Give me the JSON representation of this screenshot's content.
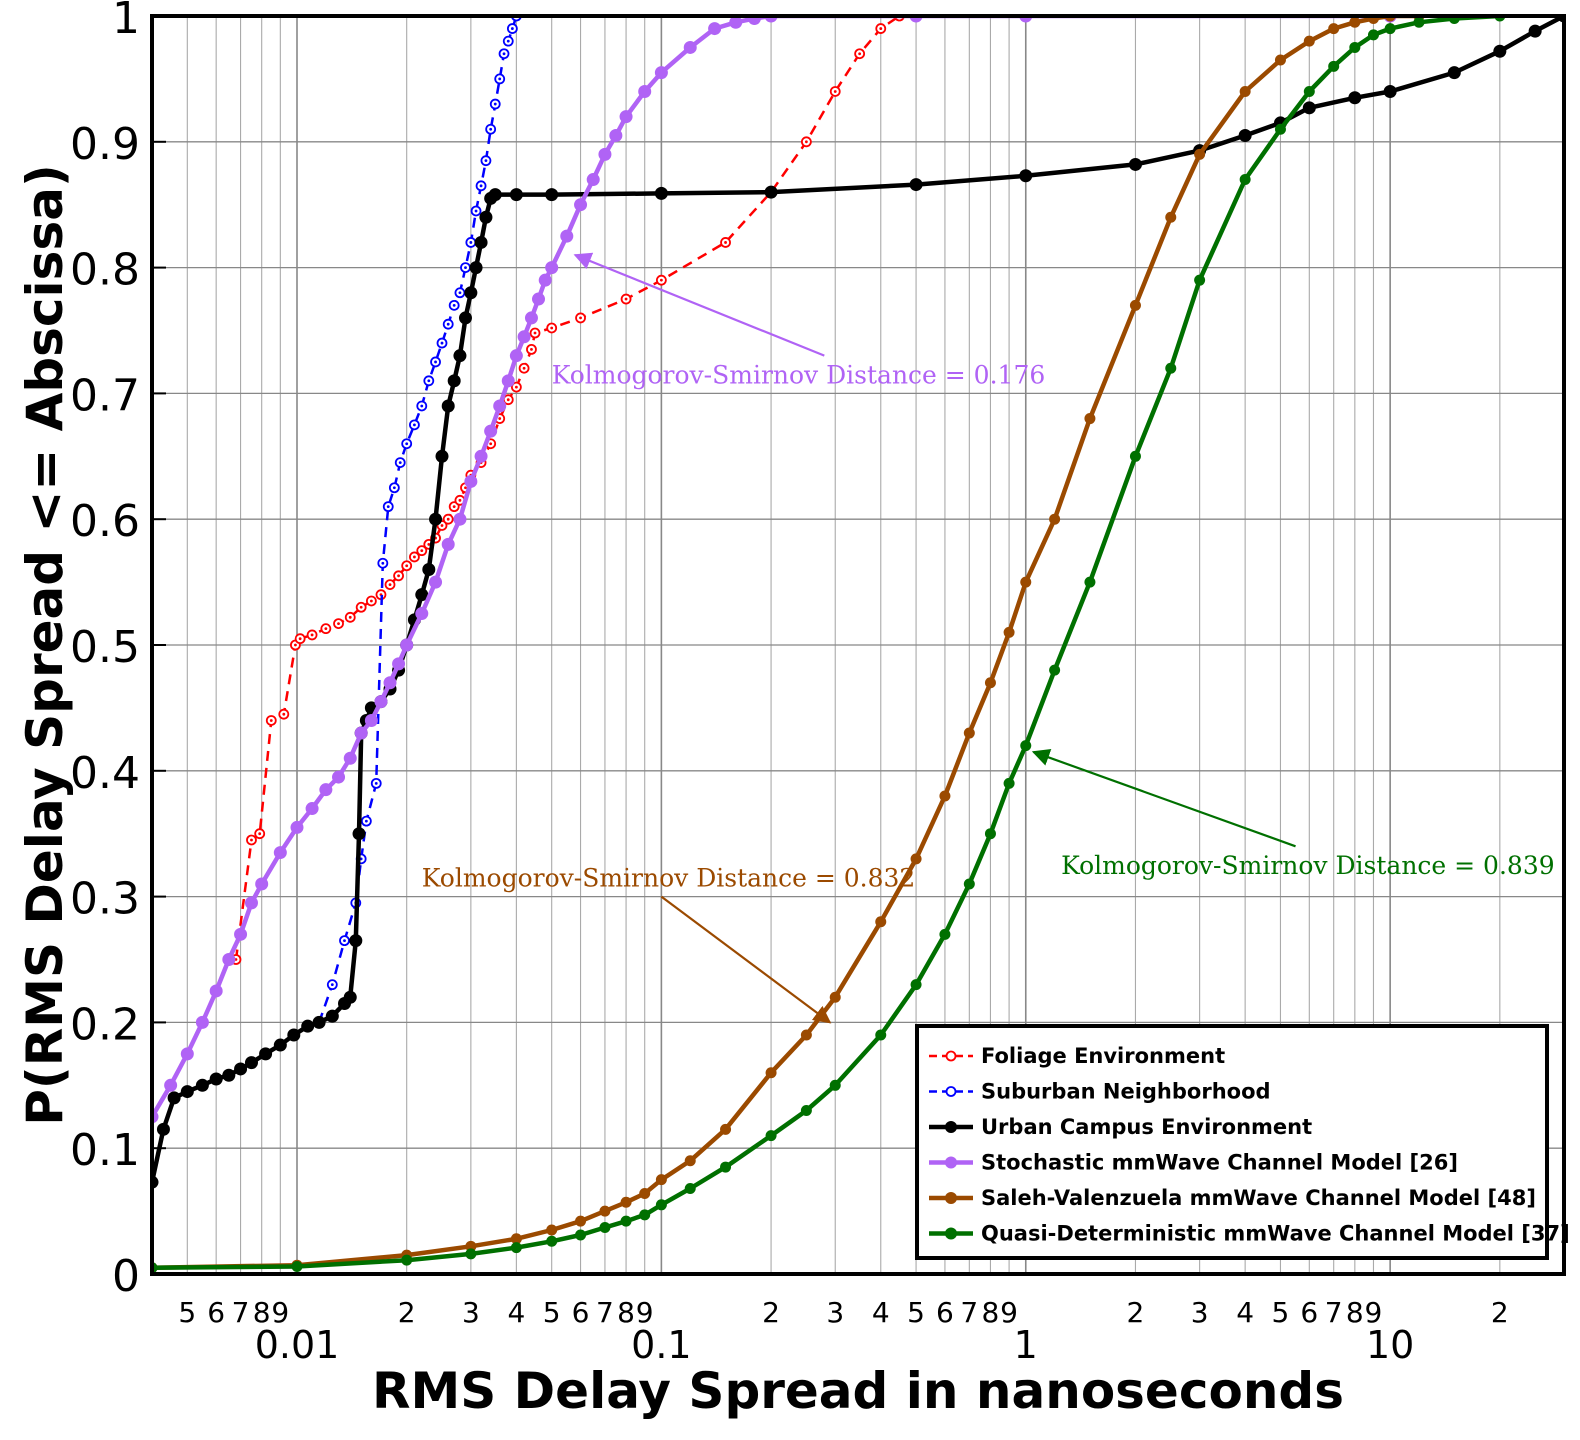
{
  "chart_data": {
    "type": "line",
    "xlabel": "RMS Delay Spread in nanoseconds",
    "ylabel": "P(RMS Delay Spread <= Abscissa)",
    "xscale": "log",
    "xlim": [
      0.004,
      30
    ],
    "ylim": [
      0,
      1
    ],
    "grid": true,
    "legend_position": "bottom-right",
    "x_major_ticks": [
      {
        "value": 0.01,
        "label": "0.01"
      },
      {
        "value": 0.1,
        "label": "0.1"
      },
      {
        "value": 1,
        "label": "1"
      },
      {
        "value": 10,
        "label": "10"
      }
    ],
    "x_minor_labels": [
      {
        "value": 0.005,
        "label": "5"
      },
      {
        "value": 0.006,
        "label": "6"
      },
      {
        "value": 0.007,
        "label": "7"
      },
      {
        "value": 0.008,
        "label": "8"
      },
      {
        "value": 0.009,
        "label": "9"
      },
      {
        "value": 0.02,
        "label": "2"
      },
      {
        "value": 0.03,
        "label": "3"
      },
      {
        "value": 0.04,
        "label": "4"
      },
      {
        "value": 0.05,
        "label": "5"
      },
      {
        "value": 0.06,
        "label": "6"
      },
      {
        "value": 0.07,
        "label": "7"
      },
      {
        "value": 0.08,
        "label": "8"
      },
      {
        "value": 0.09,
        "label": "9"
      },
      {
        "value": 0.2,
        "label": "2"
      },
      {
        "value": 0.3,
        "label": "3"
      },
      {
        "value": 0.4,
        "label": "4"
      },
      {
        "value": 0.5,
        "label": "5"
      },
      {
        "value": 0.6,
        "label": "6"
      },
      {
        "value": 0.7,
        "label": "7"
      },
      {
        "value": 0.8,
        "label": "8"
      },
      {
        "value": 0.9,
        "label": "9"
      },
      {
        "value": 2,
        "label": "2"
      },
      {
        "value": 3,
        "label": "3"
      },
      {
        "value": 4,
        "label": "4"
      },
      {
        "value": 5,
        "label": "5"
      },
      {
        "value": 6,
        "label": "6"
      },
      {
        "value": 7,
        "label": "7"
      },
      {
        "value": 8,
        "label": "8"
      },
      {
        "value": 9,
        "label": "9"
      },
      {
        "value": 20,
        "label": "2"
      }
    ],
    "y_ticks": [
      {
        "value": 0,
        "label": "0"
      },
      {
        "value": 0.1,
        "label": "0.1"
      },
      {
        "value": 0.2,
        "label": "0.2"
      },
      {
        "value": 0.3,
        "label": "0.3"
      },
      {
        "value": 0.4,
        "label": "0.4"
      },
      {
        "value": 0.5,
        "label": "0.5"
      },
      {
        "value": 0.6,
        "label": "0.6"
      },
      {
        "value": 0.7,
        "label": "0.7"
      },
      {
        "value": 0.8,
        "label": "0.8"
      },
      {
        "value": 0.9,
        "label": "0.9"
      },
      {
        "value": 1,
        "label": "1"
      }
    ],
    "series": [
      {
        "name": "Foliage Environment",
        "color": "#ff0000",
        "line_style": "dashed",
        "marker": "open-circle",
        "x": [
          0.0068,
          0.0075,
          0.0079,
          0.0085,
          0.0092,
          0.0099,
          0.0102,
          0.011,
          0.012,
          0.013,
          0.014,
          0.015,
          0.016,
          0.017,
          0.018,
          0.019,
          0.02,
          0.021,
          0.022,
          0.023,
          0.024,
          0.025,
          0.026,
          0.027,
          0.028,
          0.029,
          0.03,
          0.032,
          0.034,
          0.036,
          0.038,
          0.04,
          0.042,
          0.044,
          0.045,
          0.05,
          0.06,
          0.08,
          0.1,
          0.15,
          0.2,
          0.25,
          0.3,
          0.35,
          0.4,
          0.45
        ],
        "y": [
          0.25,
          0.345,
          0.35,
          0.44,
          0.445,
          0.5,
          0.505,
          0.508,
          0.513,
          0.517,
          0.522,
          0.53,
          0.535,
          0.54,
          0.548,
          0.555,
          0.563,
          0.57,
          0.575,
          0.58,
          0.585,
          0.595,
          0.6,
          0.61,
          0.615,
          0.625,
          0.635,
          0.645,
          0.66,
          0.68,
          0.695,
          0.705,
          0.72,
          0.735,
          0.748,
          0.752,
          0.76,
          0.775,
          0.79,
          0.82,
          0.86,
          0.9,
          0.94,
          0.97,
          0.99,
          1.0
        ]
      },
      {
        "name": "Suburban Neighborhood",
        "color": "#0000ff",
        "line_style": "dashed",
        "marker": "open-circle",
        "x": [
          0.0115,
          0.0125,
          0.0135,
          0.0145,
          0.015,
          0.0155,
          0.0165,
          0.0172,
          0.0178,
          0.0185,
          0.0192,
          0.02,
          0.021,
          0.022,
          0.023,
          0.024,
          0.025,
          0.026,
          0.027,
          0.028,
          0.029,
          0.03,
          0.031,
          0.032,
          0.033,
          0.034,
          0.035,
          0.036,
          0.037,
          0.038,
          0.039,
          0.04
        ],
        "y": [
          0.2,
          0.23,
          0.265,
          0.295,
          0.33,
          0.36,
          0.39,
          0.565,
          0.61,
          0.625,
          0.645,
          0.66,
          0.675,
          0.69,
          0.71,
          0.725,
          0.74,
          0.755,
          0.77,
          0.78,
          0.8,
          0.82,
          0.845,
          0.865,
          0.885,
          0.91,
          0.93,
          0.95,
          0.97,
          0.98,
          0.99,
          1.0
        ]
      },
      {
        "name": "Urban Campus Environment",
        "color": "#000000",
        "line_style": "solid",
        "marker": "filled-circle",
        "x": [
          0.004,
          0.0043,
          0.0046,
          0.005,
          0.0055,
          0.006,
          0.0065,
          0.007,
          0.0075,
          0.0082,
          0.009,
          0.0098,
          0.0107,
          0.0115,
          0.0125,
          0.0135,
          0.014,
          0.0145,
          0.0148,
          0.015,
          0.0155,
          0.016,
          0.017,
          0.018,
          0.019,
          0.02,
          0.021,
          0.022,
          0.023,
          0.024,
          0.025,
          0.026,
          0.027,
          0.028,
          0.029,
          0.03,
          0.031,
          0.032,
          0.033,
          0.034,
          0.035,
          0.04,
          0.05,
          0.1,
          0.2,
          0.5,
          1,
          2,
          3,
          4,
          5,
          6,
          8,
          10,
          15,
          20,
          25,
          30
        ],
        "y": [
          0.073,
          0.115,
          0.14,
          0.145,
          0.15,
          0.155,
          0.158,
          0.163,
          0.168,
          0.175,
          0.182,
          0.19,
          0.197,
          0.2,
          0.205,
          0.215,
          0.22,
          0.265,
          0.35,
          0.43,
          0.44,
          0.45,
          0.455,
          0.465,
          0.48,
          0.5,
          0.52,
          0.54,
          0.56,
          0.6,
          0.65,
          0.69,
          0.71,
          0.73,
          0.76,
          0.78,
          0.8,
          0.82,
          0.84,
          0.855,
          0.858,
          0.858,
          0.858,
          0.859,
          0.86,
          0.866,
          0.873,
          0.882,
          0.893,
          0.905,
          0.915,
          0.927,
          0.935,
          0.94,
          0.955,
          0.972,
          0.988,
          1.0
        ]
      },
      {
        "name": "Stochastic mmWave Channel Model [26]",
        "color": "#b063f5",
        "line_style": "solid",
        "marker": "filled-circle",
        "x": [
          0.004,
          0.0045,
          0.005,
          0.0055,
          0.006,
          0.0065,
          0.007,
          0.0075,
          0.008,
          0.009,
          0.01,
          0.011,
          0.012,
          0.013,
          0.014,
          0.015,
          0.016,
          0.017,
          0.018,
          0.019,
          0.02,
          0.022,
          0.024,
          0.026,
          0.028,
          0.03,
          0.032,
          0.034,
          0.036,
          0.038,
          0.04,
          0.042,
          0.044,
          0.046,
          0.048,
          0.05,
          0.055,
          0.06,
          0.065,
          0.07,
          0.075,
          0.08,
          0.09,
          0.1,
          0.12,
          0.14,
          0.16,
          0.18,
          0.2,
          0.5,
          1,
          10
        ],
        "y": [
          0.125,
          0.15,
          0.175,
          0.2,
          0.225,
          0.25,
          0.27,
          0.295,
          0.31,
          0.335,
          0.355,
          0.37,
          0.385,
          0.395,
          0.41,
          0.43,
          0.44,
          0.455,
          0.47,
          0.485,
          0.5,
          0.525,
          0.55,
          0.58,
          0.6,
          0.63,
          0.65,
          0.67,
          0.69,
          0.71,
          0.73,
          0.745,
          0.76,
          0.775,
          0.79,
          0.8,
          0.825,
          0.85,
          0.87,
          0.89,
          0.905,
          0.92,
          0.94,
          0.955,
          0.975,
          0.99,
          0.995,
          0.998,
          1.0,
          1.0,
          1.0,
          1.0
        ]
      },
      {
        "name": "Saleh-Valenzuela mmWave Channel Model [48]",
        "color": "#9b4a00",
        "line_style": "solid",
        "marker": "filled-circle",
        "x": [
          0.004,
          0.01,
          0.02,
          0.03,
          0.04,
          0.05,
          0.06,
          0.07,
          0.08,
          0.09,
          0.1,
          0.12,
          0.15,
          0.2,
          0.25,
          0.3,
          0.4,
          0.5,
          0.6,
          0.7,
          0.8,
          0.9,
          1.0,
          1.2,
          1.5,
          2,
          2.5,
          3,
          4,
          5,
          6,
          7,
          8,
          9,
          10,
          12
        ],
        "y": [
          0.005,
          0.007,
          0.015,
          0.022,
          0.028,
          0.035,
          0.042,
          0.05,
          0.057,
          0.064,
          0.075,
          0.09,
          0.115,
          0.16,
          0.19,
          0.22,
          0.28,
          0.33,
          0.38,
          0.43,
          0.47,
          0.51,
          0.55,
          0.6,
          0.68,
          0.77,
          0.84,
          0.89,
          0.94,
          0.965,
          0.98,
          0.99,
          0.995,
          0.998,
          1.0,
          1.0
        ]
      },
      {
        "name": "Quasi-Deterministic mmWave Channel Model [37]",
        "color": "#007000",
        "line_style": "solid",
        "marker": "filled-circle",
        "x": [
          0.004,
          0.01,
          0.02,
          0.03,
          0.04,
          0.05,
          0.06,
          0.07,
          0.08,
          0.09,
          0.1,
          0.12,
          0.15,
          0.2,
          0.25,
          0.3,
          0.4,
          0.5,
          0.6,
          0.7,
          0.8,
          0.9,
          1.0,
          1.2,
          1.5,
          2,
          2.5,
          3,
          4,
          5,
          6,
          7,
          8,
          9,
          10,
          12,
          15,
          20
        ],
        "y": [
          0.005,
          0.006,
          0.011,
          0.016,
          0.021,
          0.026,
          0.031,
          0.037,
          0.042,
          0.047,
          0.055,
          0.068,
          0.085,
          0.11,
          0.13,
          0.15,
          0.19,
          0.23,
          0.27,
          0.31,
          0.35,
          0.39,
          0.42,
          0.48,
          0.55,
          0.65,
          0.72,
          0.79,
          0.87,
          0.91,
          0.94,
          0.96,
          0.975,
          0.985,
          0.99,
          0.995,
          0.998,
          1.0
        ]
      }
    ],
    "annotations": [
      {
        "text": "Kolmogorov-Smirnov Distance = 0.176",
        "color": "#b063f5",
        "label_at": [
          0.05,
          0.708
        ],
        "arrow_from": [
          0.28,
          0.73
        ],
        "arrow_to": [
          0.058,
          0.81
        ]
      },
      {
        "text": "Kolmogorov-Smirnov Distance = 0.832",
        "color": "#9b4a00",
        "label_at": [
          0.022,
          0.308
        ],
        "arrow_from": [
          0.1,
          0.3
        ],
        "arrow_to": [
          0.29,
          0.2
        ]
      },
      {
        "text": "Kolmogorov-Smirnov Distance = 0.839",
        "color": "#007000",
        "label_at": [
          1.25,
          0.318
        ],
        "arrow_from": [
          5.5,
          0.34
        ],
        "arrow_to": [
          1.05,
          0.415
        ]
      }
    ]
  }
}
